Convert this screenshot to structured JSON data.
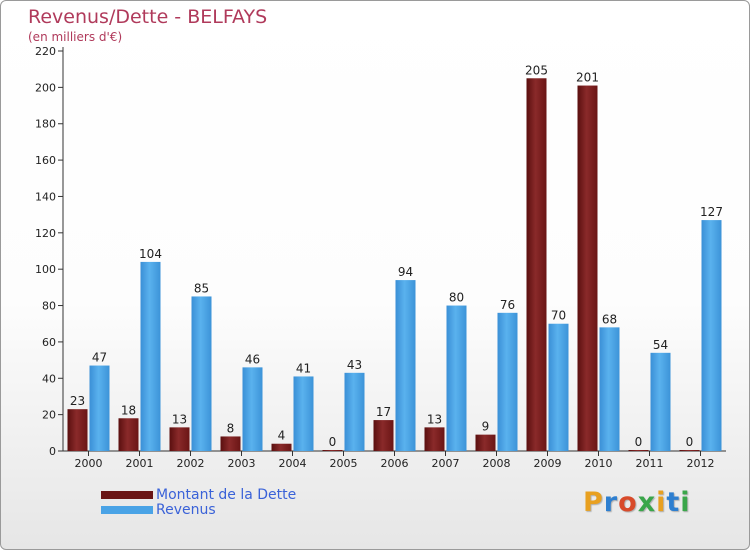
{
  "chart_data": {
    "type": "bar",
    "title": "Revenus/Dette - BELFAYS",
    "subtitle": "(en milliers d'€)",
    "categories": [
      "2000",
      "2001",
      "2002",
      "2003",
      "2004",
      "2005",
      "2006",
      "2007",
      "2008",
      "2009",
      "2010",
      "2011",
      "2012"
    ],
    "series": [
      {
        "name": "Montant de la Dette",
        "color": "#7a1d1d",
        "values": [
          23,
          18,
          13,
          8,
          4,
          0,
          17,
          13,
          9,
          205,
          201,
          0,
          0
        ]
      },
      {
        "name": "Revenus",
        "color": "#4aa3e6",
        "values": [
          47,
          104,
          85,
          46,
          41,
          43,
          94,
          80,
          76,
          70,
          68,
          54,
          127
        ]
      }
    ],
    "ylim": [
      0,
      220
    ],
    "yticks": [
      0,
      20,
      40,
      60,
      80,
      100,
      120,
      140,
      160,
      180,
      200,
      220
    ],
    "grid": false,
    "legend_position": "bottom-left"
  },
  "logo": {
    "letters": [
      "P",
      "r",
      "o",
      "x",
      "i",
      "t",
      "i"
    ],
    "colors": [
      "#e8a020",
      "#2e7fd0",
      "#d84a2a",
      "#3aa64a",
      "#e8a020",
      "#2e7fd0",
      "#3aa64a"
    ]
  }
}
